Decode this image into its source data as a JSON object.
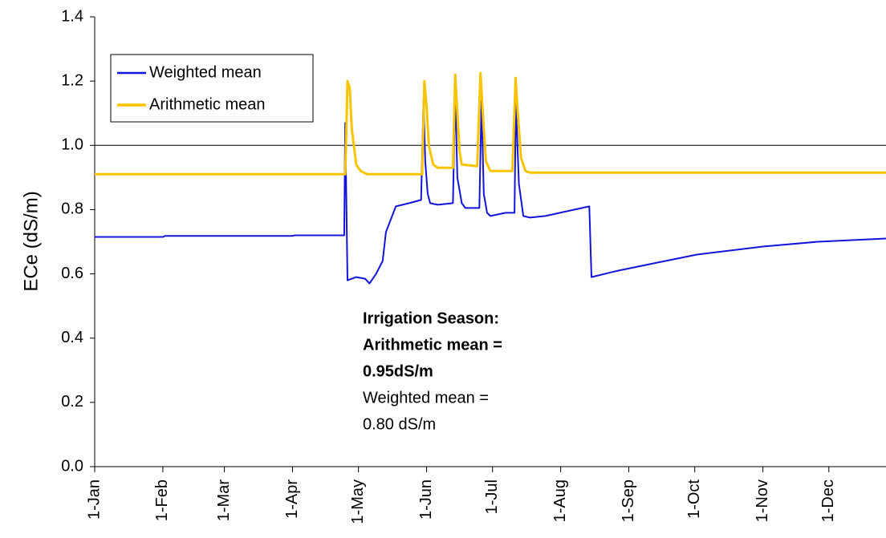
{
  "chart_data": {
    "type": "line",
    "y_label": "ECe (dS/m)",
    "xlim": [
      0,
      360
    ],
    "xticks": [
      {
        "value": 0,
        "label": "1-Jan"
      },
      {
        "value": 31,
        "label": "1-Feb"
      },
      {
        "value": 59,
        "label": "1-Mar"
      },
      {
        "value": 90,
        "label": "1-Apr"
      },
      {
        "value": 120,
        "label": "1-May"
      },
      {
        "value": 151,
        "label": "1-Jun"
      },
      {
        "value": 181,
        "label": "1-Jul"
      },
      {
        "value": 212,
        "label": "1-Aug"
      },
      {
        "value": 243,
        "label": "1-Sep"
      },
      {
        "value": 273,
        "label": "1-Oct"
      },
      {
        "value": 304,
        "label": "1-Nov"
      },
      {
        "value": 334,
        "label": "1-Dec"
      }
    ],
    "ylim": [
      0,
      1.4
    ],
    "yticks": [
      {
        "value": 0,
        "label": "0.0"
      },
      0.2,
      0.4,
      0.6,
      0.8,
      {
        "value": 1,
        "label": "1.0"
      },
      1.2,
      1.4
    ],
    "reference_line": 1.0,
    "legend": "upper-left",
    "series": [
      {
        "name": "Weighted mean",
        "color": "#1414d8",
        "x": [
          0,
          31,
          32,
          90,
          91,
          113.5,
          114,
          115,
          119,
          123,
          125,
          128,
          131,
          132.5,
          137,
          143,
          148.5,
          149.6,
          150.4,
          151.5,
          152.6,
          156,
          163,
          164,
          165,
          167,
          168.6,
          175,
          176,
          177,
          178.5,
          180,
          187,
          191,
          191.6,
          193,
          195,
          198,
          205,
          225,
          226,
          238,
          256,
          274,
          304,
          329,
          360
        ],
        "values": [
          0.715,
          0.715,
          0.718,
          0.718,
          0.72,
          0.72,
          1.07,
          0.58,
          0.59,
          0.585,
          0.57,
          0.6,
          0.64,
          0.73,
          0.81,
          0.82,
          0.83,
          1.14,
          0.95,
          0.85,
          0.82,
          0.815,
          0.82,
          1.17,
          0.9,
          0.82,
          0.805,
          0.805,
          1.14,
          0.85,
          0.79,
          0.78,
          0.79,
          0.79,
          1.13,
          0.88,
          0.78,
          0.775,
          0.78,
          0.81,
          0.59,
          0.61,
          0.635,
          0.66,
          0.685,
          0.7,
          0.71
        ]
      },
      {
        "name": "Arithmetic mean",
        "color": "#f8c400",
        "x": [
          0,
          114,
          115,
          116,
          117,
          119,
          121,
          124,
          149,
          150,
          151,
          152,
          154,
          156,
          163,
          164,
          165,
          166,
          167,
          174,
          175.5,
          177,
          178,
          180,
          190,
          191.5,
          192.5,
          194,
          196,
          198,
          360
        ],
        "values": [
          0.91,
          0.91,
          1.2,
          1.18,
          1.05,
          0.94,
          0.92,
          0.91,
          0.91,
          1.2,
          1.12,
          1.0,
          0.94,
          0.93,
          0.93,
          1.22,
          1.1,
          0.98,
          0.94,
          0.935,
          1.225,
          1.05,
          0.95,
          0.92,
          0.92,
          1.21,
          1.1,
          0.96,
          0.92,
          0.915,
          0.915
        ]
      }
    ],
    "annotations": [
      {
        "text": "Irrigation Season:",
        "color": "#000000",
        "bold": true
      },
      {
        "text": "Arithmetic mean =",
        "color": "#f5a800",
        "bold": true
      },
      {
        "text": "0.95dS/m",
        "color": "#f5a800",
        "bold": true
      },
      {
        "text": "Weighted mean =",
        "color": "#1414d8",
        "bold": false
      },
      {
        "text": "0.80 dS/m",
        "color": "#1414d8",
        "bold": false
      }
    ]
  }
}
